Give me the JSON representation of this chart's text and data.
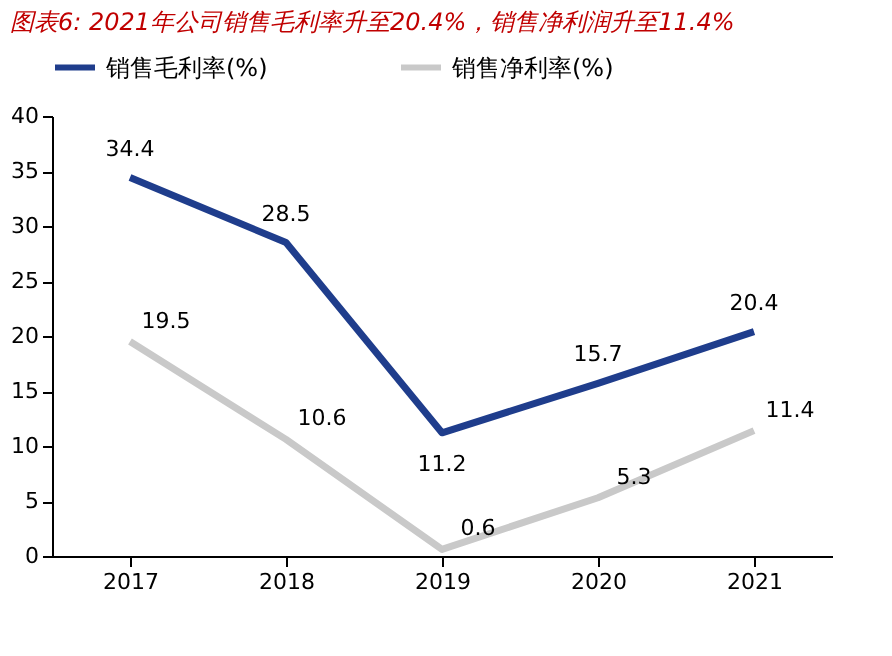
{
  "chart_data": {
    "type": "line",
    "title": "图表6: 2021年公司销售毛利率升至20.4%，销售净利润升至11.4%",
    "categories": [
      "2017",
      "2018",
      "2019",
      "2020",
      "2021"
    ],
    "series": [
      {
        "name": "销售毛利率(%)",
        "color": "#1f3d8c",
        "values": [
          34.4,
          28.5,
          11.2,
          15.7,
          20.4
        ]
      },
      {
        "name": "销售净利率(%)",
        "color": "#c9c9c9",
        "values": [
          19.5,
          10.6,
          0.6,
          5.3,
          11.4
        ]
      }
    ],
    "ylim": [
      0,
      40
    ],
    "yticks": [
      0,
      5,
      10,
      15,
      20,
      25,
      30,
      35,
      40
    ],
    "grid": false,
    "legend": "top",
    "data_labels": true,
    "marker": "none",
    "line_style": "solid"
  }
}
